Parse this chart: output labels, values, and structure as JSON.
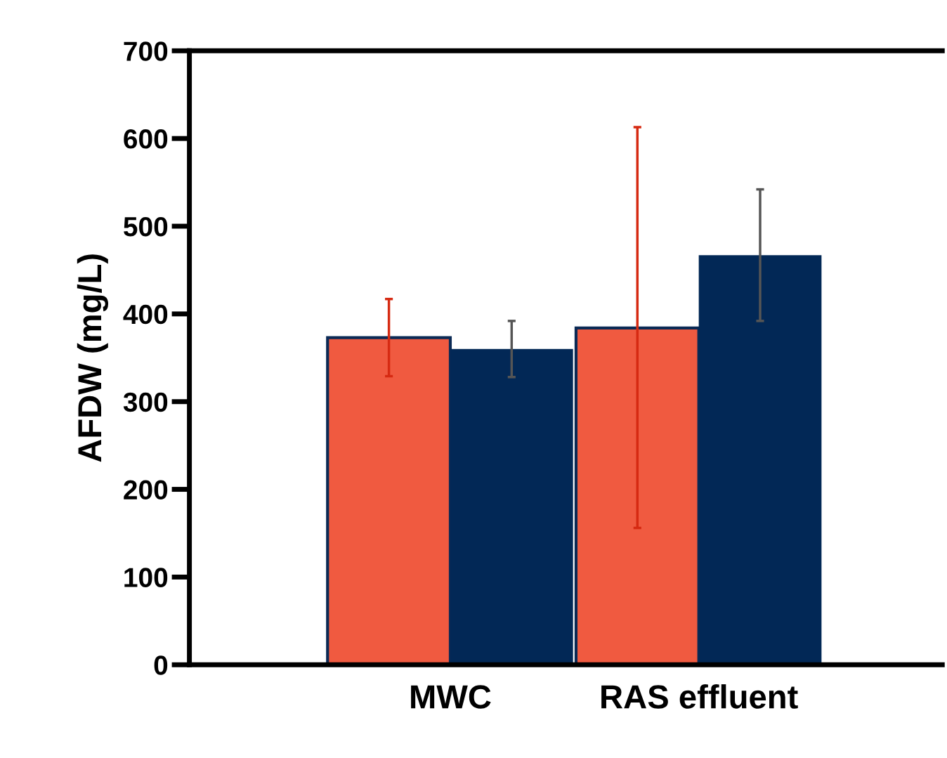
{
  "chart_data": {
    "type": "bar",
    "ylabel": "AFDW (mg/L)",
    "categories": [
      "MWC",
      "RAS effluent"
    ],
    "series": [
      {
        "color": "#f05a40",
        "values": [
          373,
          384
        ],
        "errors": [
          [
            329,
            417
          ],
          [
            156,
            613
          ]
        ]
      },
      {
        "color": "#022856",
        "values": [
          360,
          467
        ],
        "errors": [
          [
            328,
            392
          ],
          [
            392,
            542
          ]
        ]
      }
    ],
    "ylim": [
      0,
      700
    ],
    "yticks": [
      0,
      100,
      200,
      300,
      400,
      500,
      600,
      700
    ],
    "grid": false,
    "legend": false
  }
}
